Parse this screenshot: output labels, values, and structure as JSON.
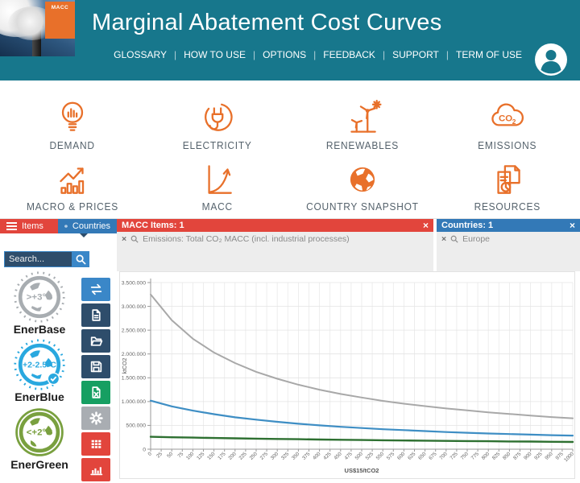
{
  "header": {
    "logo_text": "MACC",
    "title": "Marginal Abatement Cost Curves",
    "nav": [
      "GLOSSARY",
      "HOW TO USE",
      "OPTIONS",
      "FEEDBACK",
      "SUPPORT",
      "TERM OF USE"
    ]
  },
  "menu": {
    "items": [
      {
        "label": "DEMAND",
        "icon": "lightbulb-chart-icon"
      },
      {
        "label": "ELECTRICITY",
        "icon": "plug-icon"
      },
      {
        "label": "RENEWABLES",
        "icon": "wind-turbine-icon"
      },
      {
        "label": "EMISSIONS",
        "icon": "co2-cloud-icon"
      },
      {
        "label": "MACRO & PRICES",
        "icon": "bars-trend-icon"
      },
      {
        "label": "MACC",
        "icon": "curve-axis-icon"
      },
      {
        "label": "COUNTRY SNAPSHOT",
        "icon": "globe-icon"
      },
      {
        "label": "RESOURCES",
        "icon": "documents-pie-icon"
      }
    ]
  },
  "filters": {
    "items_tab": "Items",
    "countries_tab": "Countries",
    "macc_items": {
      "title": "MACC Items: 1",
      "entry": "Emissions: Total CO₂ MACC (incl. industrial processes)"
    },
    "countries": {
      "title": "Countries: 1",
      "entry": "Europe"
    }
  },
  "search": {
    "placeholder": "Search..."
  },
  "scenarios": [
    {
      "name": "EnerBase",
      "temp": ">+3°C",
      "color": "#a8adb1"
    },
    {
      "name": "EnerBlue",
      "temp": "+2-2.5°C",
      "color": "#29a8df"
    },
    {
      "name": "EnerGreen",
      "temp": "<+2°C",
      "color": "#79a03f"
    }
  ],
  "toolbar": {
    "buttons": [
      {
        "name": "swap-series",
        "color": "#3a87c8"
      },
      {
        "name": "new-document",
        "color": "#2e4d6b"
      },
      {
        "name": "open-folder",
        "color": "#2e4d6b"
      },
      {
        "name": "save",
        "color": "#2e4d6b"
      },
      {
        "name": "export-excel",
        "color": "#169f62"
      },
      {
        "name": "settings",
        "color": "#a9adb2"
      },
      {
        "name": "table-view",
        "color": "#e2453c"
      },
      {
        "name": "chart-view",
        "color": "#e2453c"
      }
    ]
  },
  "colors": {
    "header_teal": "#17778c",
    "accent_orange": "#e8702a",
    "filter_red": "#e2453c",
    "filter_blue": "#3379b7",
    "navy": "#2e4d6b"
  },
  "chart_data": {
    "type": "line",
    "title": "",
    "xlabel": "US$15/tCO2",
    "ylabel": "ktCO2",
    "xlim": [
      0,
      1000
    ],
    "ylim": [
      0,
      3500000
    ],
    "grid": true,
    "legend": "none",
    "x_ticks": [
      0,
      25,
      50,
      75,
      100,
      125,
      150,
      175,
      200,
      225,
      250,
      275,
      300,
      325,
      350,
      375,
      400,
      425,
      450,
      475,
      500,
      525,
      550,
      575,
      600,
      625,
      650,
      675,
      700,
      725,
      750,
      775,
      800,
      825,
      850,
      875,
      900,
      925,
      950,
      975,
      1000
    ],
    "y_tick_values": [
      0,
      500000,
      1000000,
      1500000,
      2000000,
      2500000,
      3000000,
      3500000
    ],
    "y_tick_labels": [
      "0",
      "500.000",
      "1.000.000",
      "1.500.000",
      "2.000.000",
      "2.500.000",
      "3.000.000",
      "3.500.000"
    ],
    "x": [
      0,
      50,
      100,
      150,
      200,
      250,
      300,
      350,
      400,
      450,
      500,
      550,
      600,
      650,
      700,
      750,
      800,
      850,
      900,
      950,
      1000
    ],
    "series": [
      {
        "name": "EnerBase",
        "color": "#a8a8a8",
        "width": 2,
        "values": [
          3250000,
          2710000,
          2320000,
          2030000,
          1810000,
          1625000,
          1480000,
          1355000,
          1250000,
          1160000,
          1085000,
          1015000,
          955000,
          905000,
          855000,
          815000,
          775000,
          740000,
          705000,
          675000,
          650000
        ]
      },
      {
        "name": "EnerBlue",
        "color": "#3e8ec4",
        "width": 2.2,
        "values": [
          1020000,
          900000,
          810000,
          735000,
          670000,
          620000,
          575000,
          535000,
          500000,
          470000,
          445000,
          420000,
          400000,
          380000,
          360000,
          345000,
          330000,
          318000,
          306000,
          295000,
          285000
        ]
      },
      {
        "name": "EnerGreen",
        "color": "#2e7031",
        "width": 2.4,
        "values": [
          260000,
          251000,
          243000,
          235000,
          228000,
          221000,
          215000,
          209000,
          203000,
          198000,
          193000,
          188000,
          183000,
          179000,
          175000,
          171000,
          167000,
          163000,
          160000,
          156000,
          153000
        ]
      }
    ]
  }
}
